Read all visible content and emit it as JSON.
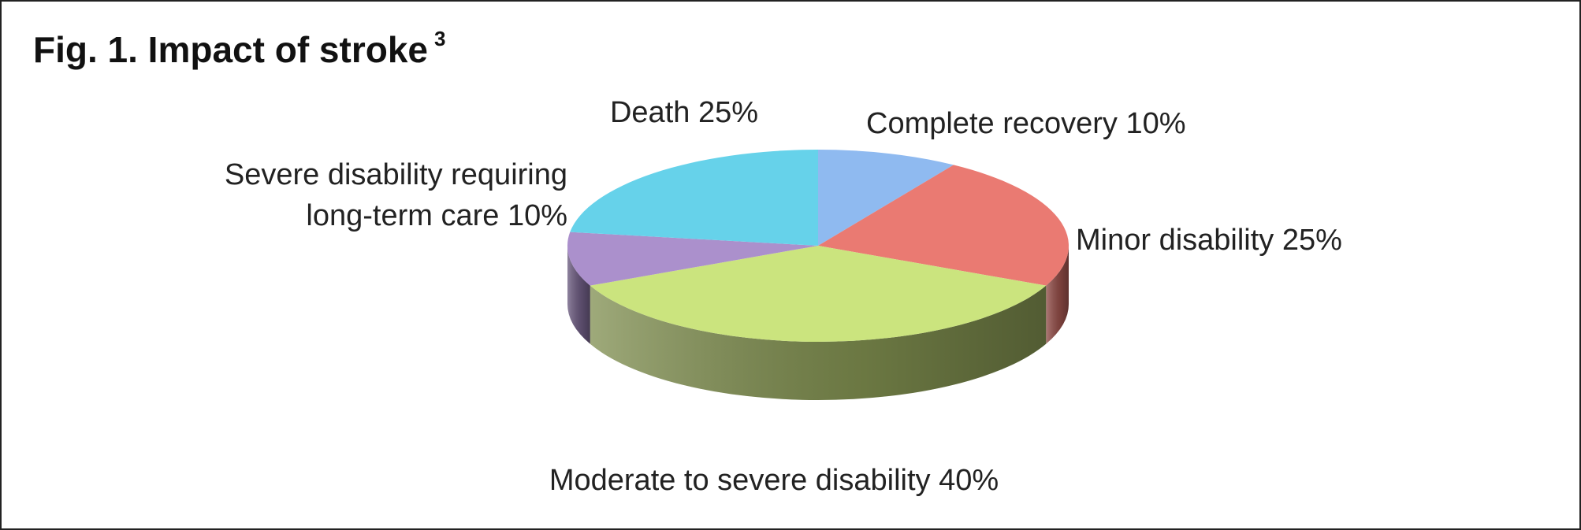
{
  "chart_data": {
    "type": "pie",
    "title": "Fig. 1. Impact of stroke",
    "title_note": "3",
    "categories": [
      "Complete recovery",
      "Minor disability",
      "Moderate to severe disability",
      "Severe disability requiring long-term care",
      "Death"
    ],
    "values": [
      10,
      25,
      40,
      10,
      25
    ],
    "value_labels": [
      "10%",
      "25%",
      "40%",
      "10%",
      "25%"
    ],
    "colors": [
      "#8fbaf0",
      "#ea7a72",
      "#cbe47e",
      "#ab90cc",
      "#66d2ea"
    ]
  }
}
